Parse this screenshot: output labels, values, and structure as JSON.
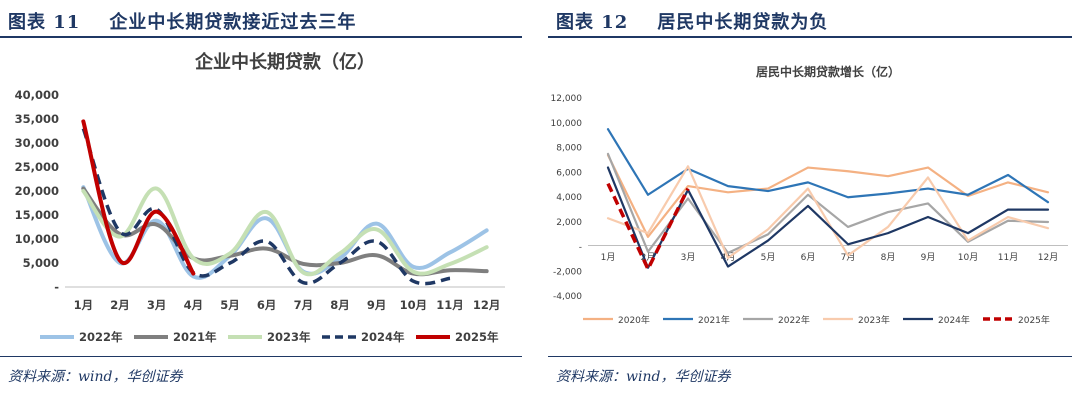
{
  "figures": [
    {
      "fig_label": "图表 11",
      "fig_title": "企业中长期贷款接近过去三年",
      "source": "资料来源：wind，华创证券"
    },
    {
      "fig_label": "图表 12",
      "fig_title": "居民中长期贷款为负",
      "source": "资料来源：wind，华创证券"
    }
  ],
  "chart_data": [
    {
      "type": "line",
      "title": "企业中长期贷款（亿）",
      "categories": [
        "1月",
        "2月",
        "3月",
        "4月",
        "5月",
        "6月",
        "7月",
        "8月",
        "9月",
        "10月",
        "11月",
        "12月"
      ],
      "y_ticks": [
        "40,000",
        "35,000",
        "30,000",
        "25,000",
        "20,000",
        "15,000",
        "10,000",
        "5,000",
        "-"
      ],
      "ylim": [
        0,
        40000
      ],
      "smooth": true,
      "grid": false,
      "legend_position": "bottom",
      "series": [
        {
          "name": "2022年",
          "color": "#9dc3e6",
          "dash": false,
          "values": [
            20800,
            5000,
            13800,
            2200,
            6500,
            14300,
            3200,
            6000,
            13200,
            4200,
            7200,
            11800
          ]
        },
        {
          "name": "2021年",
          "color": "#7f7f7f",
          "dash": false,
          "values": [
            20500,
            11000,
            13000,
            6000,
            6500,
            8000,
            4800,
            5000,
            6600,
            2800,
            3500,
            3300
          ]
        },
        {
          "name": "2023年",
          "color": "#c5e0b4",
          "dash": false,
          "values": [
            20000,
            10500,
            20500,
            6000,
            7000,
            15600,
            3000,
            7000,
            12000,
            3200,
            4800,
            8300
          ]
        },
        {
          "name": "2024年",
          "color": "#1f3864",
          "dash": true,
          "values": [
            33000,
            11500,
            16200,
            3000,
            5000,
            9500,
            900,
            5000,
            9500,
            1200,
            1800,
            null
          ]
        },
        {
          "name": "2025年",
          "color": "#c00000",
          "dash": false,
          "values": [
            34500,
            5500,
            15700,
            2800,
            null,
            null,
            null,
            null,
            null,
            null,
            null,
            null
          ]
        }
      ]
    },
    {
      "type": "line",
      "title": "居民中长期贷款增长（亿）",
      "categories": [
        "1月",
        "2月",
        "3月",
        "4月",
        "5月",
        "6月",
        "7月",
        "8月",
        "9月",
        "10月",
        "11月",
        "12月"
      ],
      "y_ticks": [
        "12,000",
        "10,000",
        "8,000",
        "6,000",
        "4,000",
        "2,000",
        "-",
        "-2,000",
        "-4,000"
      ],
      "ylim": [
        -4000,
        12000
      ],
      "smooth": false,
      "grid": false,
      "legend_position": "bottom",
      "series": [
        {
          "name": "2020年",
          "color": "#f4b183",
          "dash": false,
          "values": [
            7300,
            700,
            4800,
            4300,
            4600,
            6300,
            6000,
            5600,
            6300,
            4000,
            5100,
            4300
          ]
        },
        {
          "name": "2021年",
          "color": "#2e75b6",
          "dash": false,
          "values": [
            9400,
            4100,
            6200,
            4800,
            4400,
            5100,
            3900,
            4200,
            4600,
            4100,
            5700,
            3500
          ]
        },
        {
          "name": "2022年",
          "color": "#a6a6a6",
          "dash": false,
          "values": [
            7400,
            -500,
            3800,
            -600,
            900,
            4100,
            1500,
            2700,
            3400,
            300,
            2000,
            1900
          ]
        },
        {
          "name": "2023年",
          "color": "#f8cbad",
          "dash": false,
          "values": [
            2200,
            1000,
            6400,
            -1000,
            1300,
            4600,
            -800,
            1500,
            5500,
            400,
            2300,
            1400
          ]
        },
        {
          "name": "2024年",
          "color": "#1f3864",
          "dash": false,
          "values": [
            6300,
            -1800,
            4500,
            -1700,
            400,
            3200,
            100,
            1000,
            2300,
            1000,
            2900,
            2900
          ]
        },
        {
          "name": "2025年",
          "color": "#c00000",
          "dash": true,
          "values": [
            5000,
            -1900,
            4600,
            null,
            null,
            null,
            null,
            null,
            null,
            null,
            null,
            null
          ]
        }
      ]
    }
  ]
}
